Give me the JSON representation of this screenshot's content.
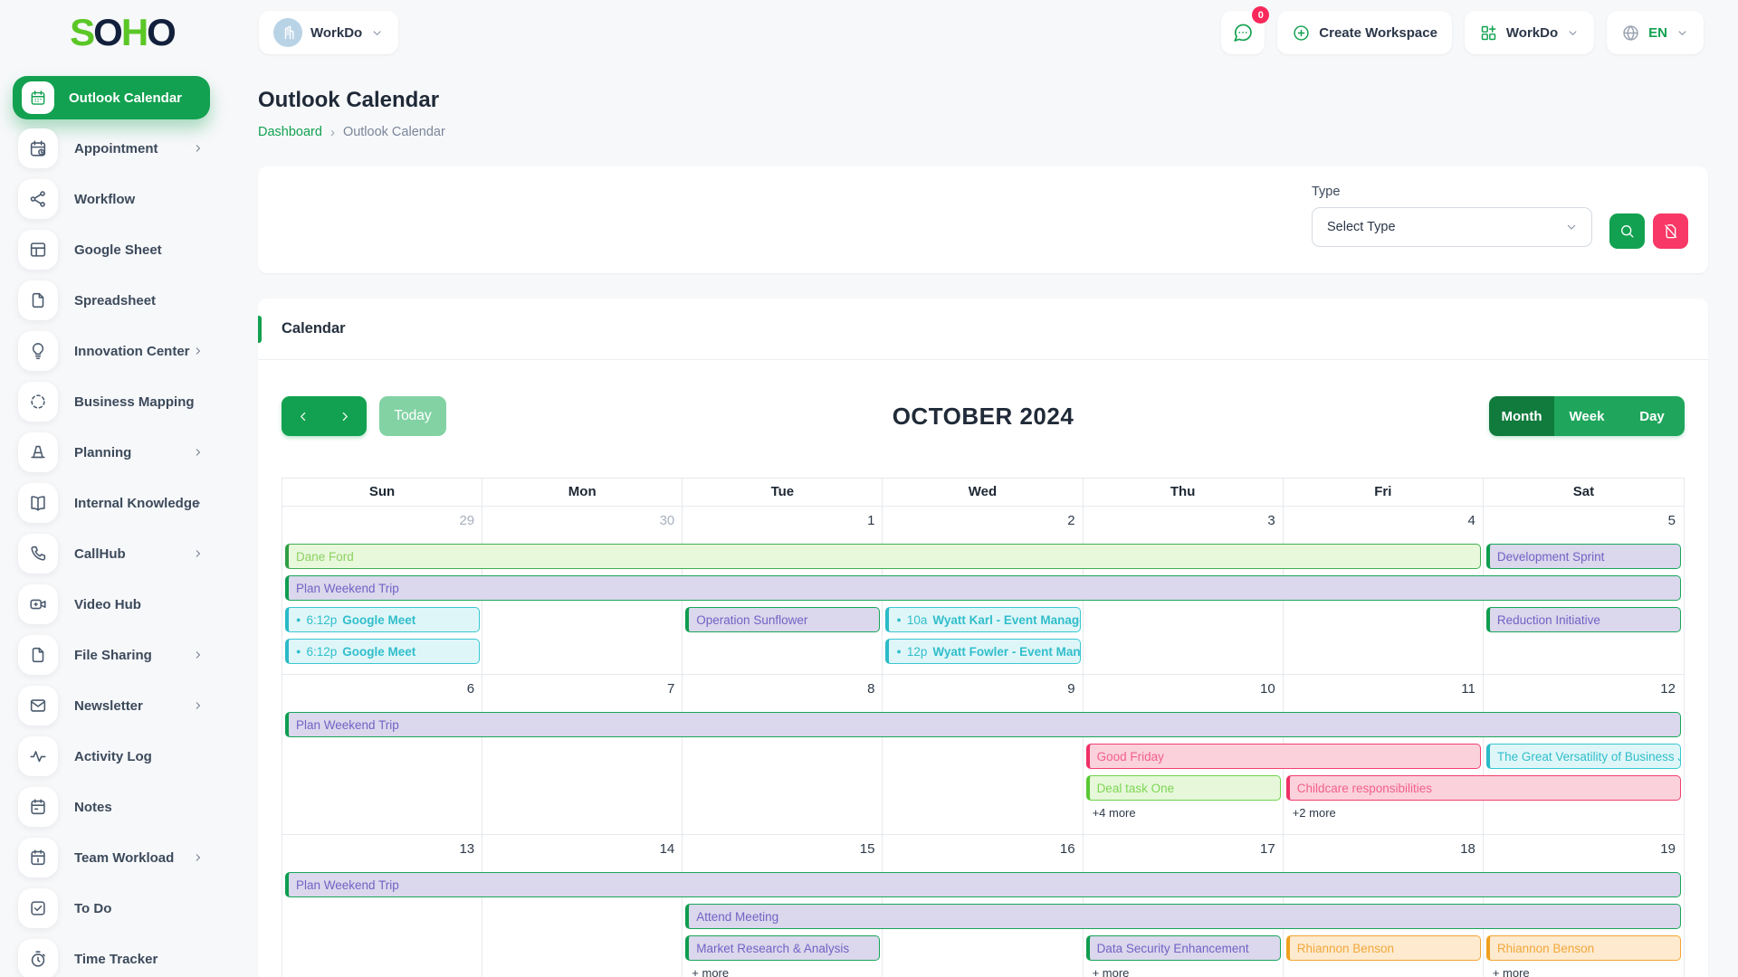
{
  "colors": {
    "primary_green": "#12A150",
    "active_view_green": "#117A3D",
    "today_disabled_green": "#82D2A4",
    "badge_red": "#F8285A",
    "logo_green": "#5BC727",
    "logo_navy": "#13203C"
  },
  "brand": {
    "logo": [
      {
        "t": "S",
        "c": "#5BC727"
      },
      {
        "t": "O",
        "c": "#13203C"
      },
      {
        "t": "H",
        "c": "#5BC727"
      },
      {
        "t": "O",
        "c": "#13203C"
      }
    ]
  },
  "header": {
    "workspace_selector": {
      "label": "WorkDo"
    },
    "notifications": {
      "badge": "0"
    },
    "create_workspace_label": "Create Workspace",
    "workspace_menu_label": "WorkDo",
    "language_label": "EN"
  },
  "sidebar": {
    "items": [
      {
        "label": "Outlook Calendar",
        "icon": "calendar-icon",
        "active": true,
        "chevron": false
      },
      {
        "label": "Appointment",
        "icon": "appointment-calendar-icon",
        "active": false,
        "chevron": true
      },
      {
        "label": "Workflow",
        "icon": "workflow-icon",
        "active": false,
        "chevron": false
      },
      {
        "label": "Google Sheet",
        "icon": "sheet-icon",
        "active": false,
        "chevron": false
      },
      {
        "label": "Spreadsheet",
        "icon": "file-icon",
        "active": false,
        "chevron": false
      },
      {
        "label": "Innovation Center",
        "icon": "lightbulb-icon",
        "active": false,
        "chevron": true
      },
      {
        "label": "Business Mapping",
        "icon": "dashed-circle-icon",
        "active": false,
        "chevron": false
      },
      {
        "label": "Planning",
        "icon": "cone-icon",
        "active": false,
        "chevron": true
      },
      {
        "label": "Internal Knowledge",
        "icon": "book-icon",
        "active": false,
        "chevron": true
      },
      {
        "label": "CallHub",
        "icon": "phone-icon",
        "active": false,
        "chevron": true
      },
      {
        "label": "Video Hub",
        "icon": "video-icon",
        "active": false,
        "chevron": false
      },
      {
        "label": "File Sharing",
        "icon": "file-icon",
        "active": false,
        "chevron": true
      },
      {
        "label": "Newsletter",
        "icon": "mail-icon",
        "active": false,
        "chevron": true
      },
      {
        "label": "Activity Log",
        "icon": "activity-icon",
        "active": false,
        "chevron": false
      },
      {
        "label": "Notes",
        "icon": "notes-calendar-icon",
        "active": false,
        "chevron": false
      },
      {
        "label": "Team Workload",
        "icon": "workload-calendar-icon",
        "active": false,
        "chevron": true
      },
      {
        "label": "To Do",
        "icon": "todo-check-icon",
        "active": false,
        "chevron": false
      },
      {
        "label": "Time Tracker",
        "icon": "timer-icon",
        "active": false,
        "chevron": false
      }
    ]
  },
  "page": {
    "title": "Outlook Calendar",
    "breadcrumb": {
      "home": "Dashboard",
      "separator": "›",
      "current": "Outlook Calendar"
    }
  },
  "filter": {
    "type_label": "Type",
    "select_value": "Select Type"
  },
  "calendar": {
    "section_title": "Calendar",
    "toolbar": {
      "today_label": "Today",
      "title": "OCTOBER 2024",
      "views": [
        {
          "label": "Month",
          "active": true
        },
        {
          "label": "Week",
          "active": false
        },
        {
          "label": "Day",
          "active": false
        }
      ]
    },
    "day_headers": [
      "Sun",
      "Mon",
      "Tue",
      "Wed",
      "Thu",
      "Fri",
      "Sat"
    ],
    "weeks": [
      {
        "dates": [
          {
            "d": "29",
            "muted": true
          },
          {
            "d": "30",
            "muted": true
          },
          {
            "d": "1"
          },
          {
            "d": "2"
          },
          {
            "d": "3"
          },
          {
            "d": "4"
          },
          {
            "d": "5"
          }
        ],
        "rows": [
          [
            {
              "label": "Dane Ford",
              "col": 1,
              "span": 6,
              "theme": "lime"
            },
            {
              "label": "Development Sprint",
              "col": 7,
              "span": 1,
              "theme": "lavender"
            }
          ],
          [
            {
              "label": "Plan Weekend Trip",
              "col": 1,
              "span": 7,
              "theme": "lavender"
            }
          ],
          [
            {
              "time": "6:12p",
              "label": "Google Meet",
              "dot": true,
              "col": 1,
              "span": 1,
              "theme": "cyan"
            },
            {
              "label": "Operation Sunflower",
              "col": 3,
              "span": 1,
              "theme": "lavender"
            },
            {
              "time": "10a",
              "label": "Wyatt Karl - Event Manage",
              "dot": true,
              "col": 4,
              "span": 1,
              "theme": "cyan"
            },
            {
              "label": "Reduction Initiative",
              "col": 7,
              "span": 1,
              "theme": "lavender"
            }
          ],
          [
            {
              "time": "6:12p",
              "label": "Google Meet",
              "dot": true,
              "col": 1,
              "span": 1,
              "theme": "cyan"
            },
            {
              "time": "12p",
              "label": "Wyatt Fowler - Event Man",
              "dot": true,
              "col": 4,
              "span": 1,
              "theme": "cyan"
            }
          ]
        ],
        "more": []
      },
      {
        "dates": [
          {
            "d": "6"
          },
          {
            "d": "7"
          },
          {
            "d": "8"
          },
          {
            "d": "9"
          },
          {
            "d": "10"
          },
          {
            "d": "11"
          },
          {
            "d": "12"
          }
        ],
        "rows": [
          [
            {
              "label": "Plan Weekend Trip",
              "col": 1,
              "span": 7,
              "theme": "lavender"
            }
          ],
          [
            {
              "label": "Good Friday",
              "col": 5,
              "span": 2,
              "theme": "pink"
            },
            {
              "label": "The Great Versatility of Business Jo",
              "col": 7,
              "span": 1,
              "theme": "cyan"
            }
          ],
          [
            {
              "label": "Deal task One",
              "col": 5,
              "span": 1,
              "theme": "greenlite"
            },
            {
              "label": "Childcare responsibilities",
              "col": 6,
              "span": 2,
              "theme": "pink"
            }
          ]
        ],
        "more": [
          {
            "col": 5,
            "label": "+4 more"
          },
          {
            "col": 6,
            "label": "+2 more"
          }
        ]
      },
      {
        "dates": [
          {
            "d": "13"
          },
          {
            "d": "14"
          },
          {
            "d": "15"
          },
          {
            "d": "16"
          },
          {
            "d": "17"
          },
          {
            "d": "18"
          },
          {
            "d": "19"
          }
        ],
        "rows": [
          [
            {
              "label": "Plan Weekend Trip",
              "col": 1,
              "span": 7,
              "theme": "lavender"
            }
          ],
          [
            {
              "label": "Attend Meeting",
              "col": 3,
              "span": 5,
              "theme": "lavender"
            }
          ],
          [
            {
              "label": "Market Research & Analysis",
              "col": 3,
              "span": 1,
              "theme": "lavender"
            },
            {
              "label": "Data Security Enhancement",
              "col": 5,
              "span": 1,
              "theme": "lavender"
            },
            {
              "label": "Rhiannon Benson",
              "col": 6,
              "span": 1,
              "theme": "orange"
            },
            {
              "label": "Rhiannon Benson",
              "col": 7,
              "span": 1,
              "theme": "orange"
            }
          ]
        ],
        "more": [
          {
            "col": 3,
            "label": "+ more"
          },
          {
            "col": 5,
            "label": "+ more"
          },
          {
            "col": 7,
            "label": "+ more"
          }
        ]
      }
    ]
  }
}
